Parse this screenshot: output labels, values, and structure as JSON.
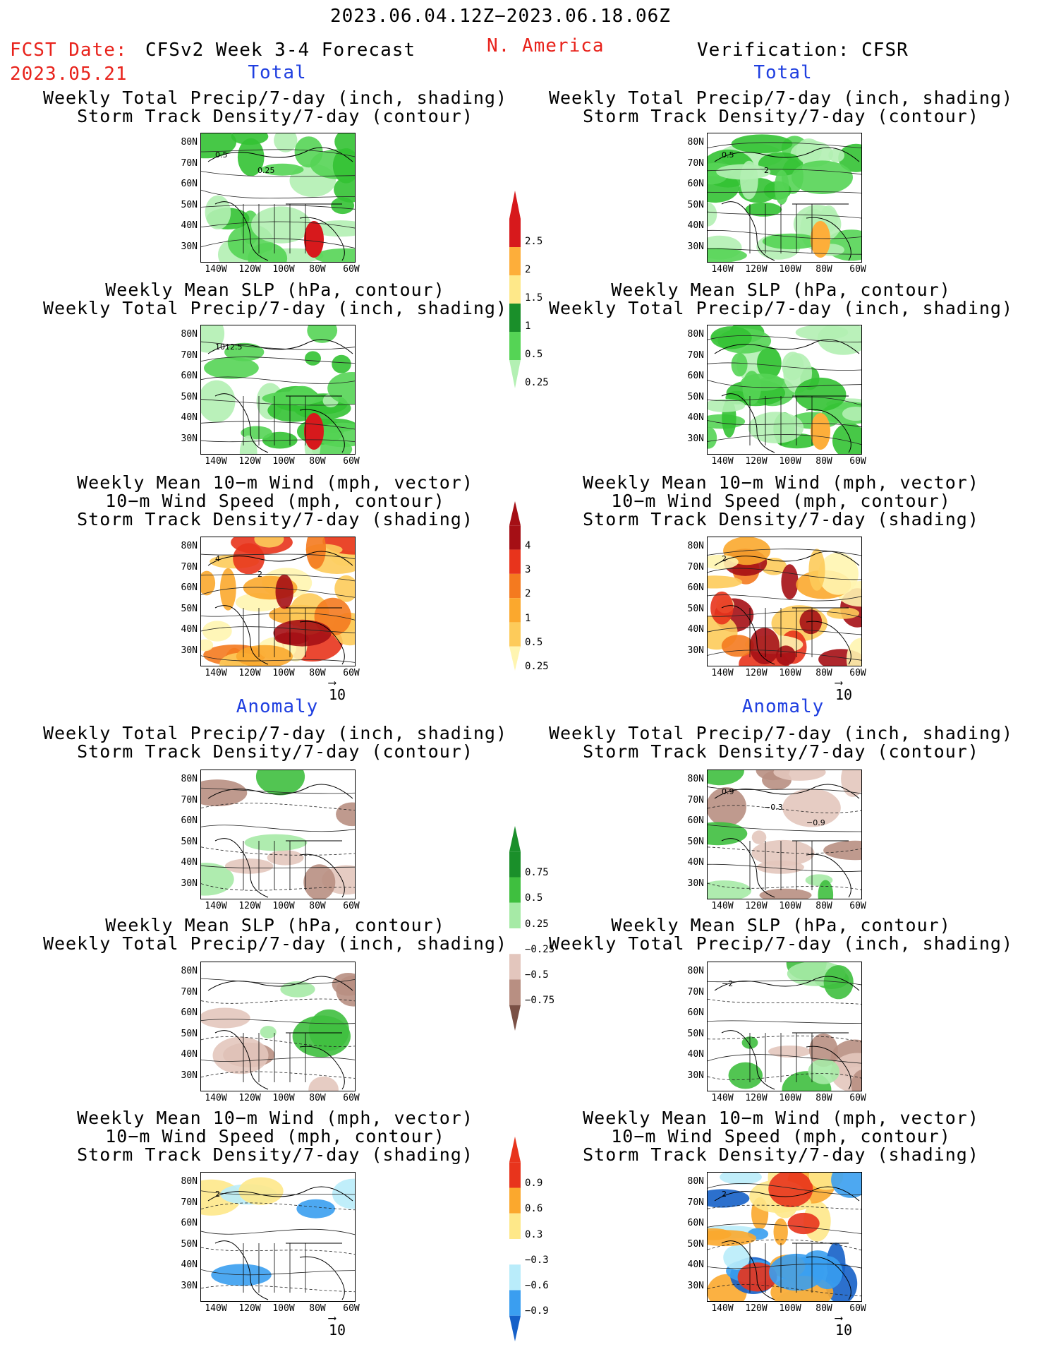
{
  "header": {
    "period": "2023.06.04.12Z−2023.06.18.06Z",
    "fcst_label": "FCST Date:",
    "fcst_date": "2023.05.21",
    "model": "CFSv2 Week 3-4 Forecast",
    "region": "N. America",
    "verification": "Verification: CFSR"
  },
  "sections": {
    "total": "Total",
    "anomaly": "Anomaly"
  },
  "titles": {
    "precip_storm": [
      "Weekly Total Precip/7-day (inch, shading)",
      "Storm Track Density/7-day (contour)"
    ],
    "slp_precip": [
      "Weekly Mean SLP (hPa, contour)",
      "Weekly Total Precip/7-day (inch, shading)"
    ],
    "wind_storm": [
      "Weekly Mean 10−m Wind (mph, vector)",
      "10−m Wind Speed (mph, contour)",
      "Storm Track Density/7-day (shading)"
    ]
  },
  "map_axes": {
    "lat_ticks": [
      "80N",
      "70N",
      "60N",
      "50N",
      "40N",
      "30N"
    ],
    "lon_ticks": [
      "140W",
      "120W",
      "100W",
      "80W",
      "60W"
    ]
  },
  "vector_ref": "10",
  "contour_labels": {
    "fcst_total_storm": [
      "0.5",
      "0.25"
    ],
    "fcst_total_slp": [
      "1012.5"
    ],
    "fcst_total_wind": [
      "4",
      "2"
    ],
    "obs_total_storm": [
      "0.5",
      "2"
    ],
    "obs_total_wind": [
      "2"
    ],
    "obs_anom_storm": [
      "0.9",
      "−0.3",
      "−0.9"
    ],
    "obs_anom_slp": [
      "−2"
    ],
    "fcst_anom_wind": [
      "2"
    ],
    "obs_anom_wind": [
      "2"
    ]
  },
  "colorbars": {
    "precip_total": {
      "labels": [
        "2.5",
        "2",
        "1.5",
        "1",
        "0.5",
        "0.25"
      ],
      "colors": [
        "#d7191c",
        "#fdae3a",
        "#fee889",
        "#1a8f2a",
        "#55d455",
        "#b3f0b3"
      ]
    },
    "storm_total": {
      "labels": [
        "4",
        "3",
        "2",
        "1",
        "0.5",
        "0.25"
      ],
      "colors": [
        "#a50f15",
        "#e8341c",
        "#f47a1f",
        "#fba82d",
        "#fdcb5a",
        "#fff5b0"
      ]
    },
    "precip_anom": {
      "labels": [
        "0.75",
        "0.5",
        "0.25",
        "−0.25",
        "−0.5",
        "−0.75"
      ],
      "colors": [
        "#1a8f2a",
        "#3fbf3f",
        "#a6eaa6",
        "#ffffff",
        "#e3c6bd",
        "#b88f82",
        "#7a5045"
      ]
    },
    "storm_anom": {
      "labels": [
        "0.9",
        "0.6",
        "0.3",
        "−0.3",
        "−0.6",
        "−0.9"
      ],
      "colors": [
        "#e8341c",
        "#fba82d",
        "#fee889",
        "#ffffff",
        "#b9ecfa",
        "#3a9ef0",
        "#1560c8"
      ]
    }
  }
}
